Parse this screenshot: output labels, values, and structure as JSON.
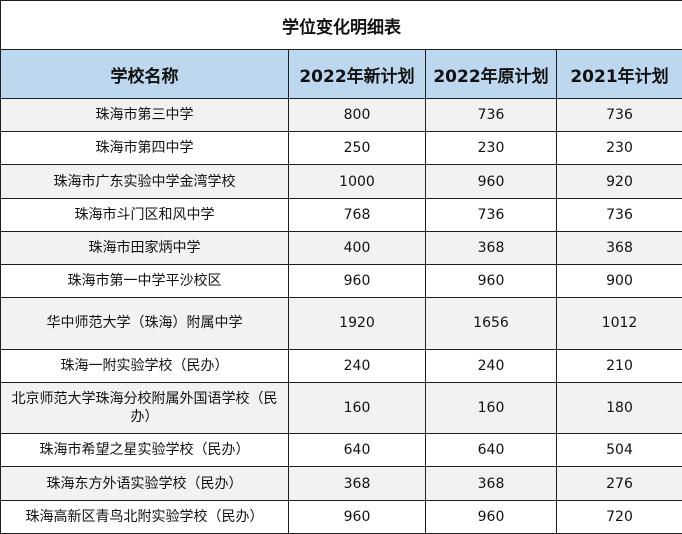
{
  "title": "学位变化明细表",
  "headers": [
    "学校名称",
    "2022年新计划",
    "2022年原计划",
    "2021年计划"
  ],
  "rows": [
    {
      "name": "珠海市第三中学",
      "new2022": "800",
      "orig2022": "736",
      "plan2021": "736"
    },
    {
      "name": "珠海市第四中学",
      "new2022": "250",
      "orig2022": "230",
      "plan2021": "230"
    },
    {
      "name": "珠海市广东实验中学金湾学校",
      "new2022": "1000",
      "orig2022": "960",
      "plan2021": "920"
    },
    {
      "name": "珠海市斗门区和风中学",
      "new2022": "768",
      "orig2022": "736",
      "plan2021": "736"
    },
    {
      "name": "珠海市田家炳中学",
      "new2022": "400",
      "orig2022": "368",
      "plan2021": "368"
    },
    {
      "name": "珠海市第一中学平沙校区",
      "new2022": "960",
      "orig2022": "960",
      "plan2021": "900"
    },
    {
      "name": "华中师范大学（珠海）附属中学",
      "new2022": "1920",
      "orig2022": "1656",
      "plan2021": "1012"
    },
    {
      "name": "珠海一附实验学校（民办）",
      "new2022": "240",
      "orig2022": "240",
      "plan2021": "210"
    },
    {
      "name": "北京师范大学珠海分校附属外国语学校（民办）",
      "new2022": "160",
      "orig2022": "160",
      "plan2021": "180"
    },
    {
      "name": "珠海市希望之星实验学校（民办）",
      "new2022": "640",
      "orig2022": "640",
      "plan2021": "504"
    },
    {
      "name": "珠海东方外语实验学校（民办）",
      "new2022": "368",
      "orig2022": "368",
      "plan2021": "276"
    },
    {
      "name": "珠海高新区青鸟北附实验学校（民办）",
      "new2022": "960",
      "orig2022": "960",
      "plan2021": "720"
    }
  ]
}
